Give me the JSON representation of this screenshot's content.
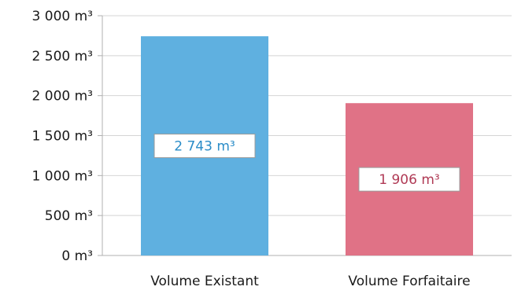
{
  "chart_data": {
    "type": "bar",
    "title": "",
    "xlabel": "",
    "ylabel": "",
    "ylim": [
      0,
      3000
    ],
    "y_ticks": [
      0,
      500,
      1000,
      1500,
      2000,
      2500,
      3000
    ],
    "y_tick_labels": [
      "0 m³",
      "500 m³",
      "1 000 m³",
      "1 500 m³",
      "2 000 m³",
      "2 500 m³",
      "3 000 m³"
    ],
    "grid": true,
    "legend": "none",
    "categories": [
      "Volume Existant",
      "Volume Forfaitaire"
    ],
    "values": [
      2743,
      1906
    ],
    "data_labels": [
      "2 743 m³",
      "1 906 m³"
    ],
    "colors": [
      "#5fb0e0",
      "#e07286"
    ],
    "label_colors": [
      "#2a8cc8",
      "#b03a55"
    ]
  }
}
